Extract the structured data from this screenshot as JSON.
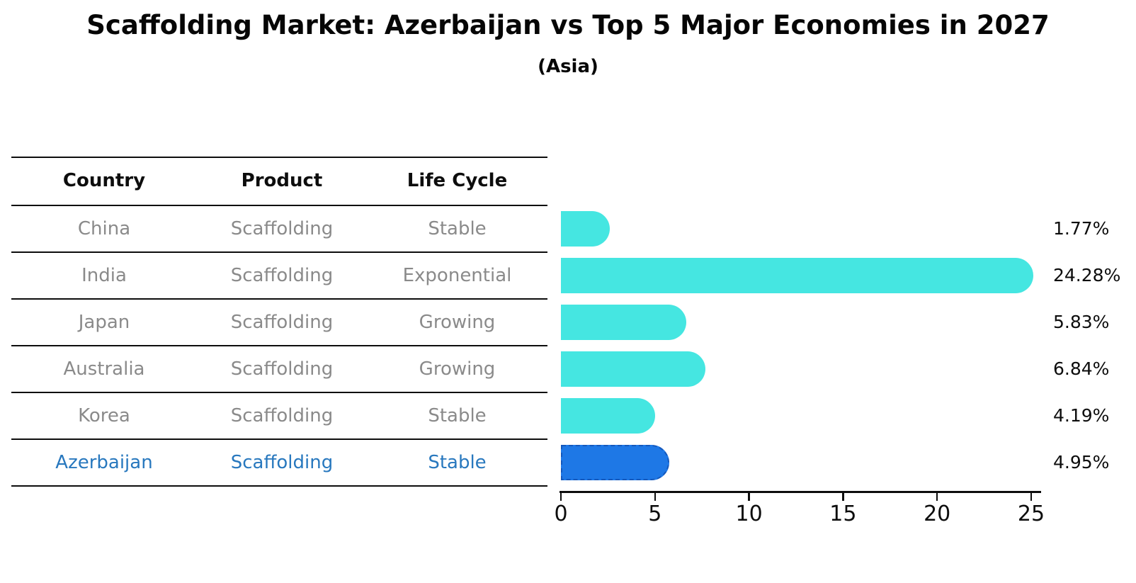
{
  "header": {
    "title": "Scaffolding Market: Azerbaijan vs Top 5 Major Economies in 2027",
    "subtitle": "(Asia)"
  },
  "table": {
    "columns": [
      "Country",
      "Product",
      "Life Cycle"
    ],
    "rows": [
      {
        "country": "China",
        "product": "Scaffolding",
        "life_cycle": "Stable",
        "highlight": false
      },
      {
        "country": "India",
        "product": "Scaffolding",
        "life_cycle": "Exponential",
        "highlight": false
      },
      {
        "country": "Japan",
        "product": "Scaffolding",
        "life_cycle": "Growing",
        "highlight": false
      },
      {
        "country": "Australia",
        "product": "Scaffolding",
        "life_cycle": "Growing",
        "highlight": false
      },
      {
        "country": "Korea",
        "product": "Scaffolding",
        "life_cycle": "Stable",
        "highlight": false
      },
      {
        "country": "Azerbaijan",
        "product": "Scaffolding",
        "life_cycle": "Stable",
        "highlight": true
      }
    ]
  },
  "chart_data": {
    "type": "bar",
    "orientation": "horizontal",
    "title": "Scaffolding Market: Azerbaijan vs Top 5 Major Economies in 2027",
    "subtitle": "(Asia)",
    "categories": [
      "China",
      "India",
      "Japan",
      "Australia",
      "Korea",
      "Azerbaijan"
    ],
    "values": [
      1.77,
      24.28,
      5.83,
      6.84,
      4.19,
      4.95
    ],
    "value_labels": [
      "1.77%",
      "24.28%",
      "5.83%",
      "6.84%",
      "4.19%",
      "4.95%"
    ],
    "highlight_category": "Azerbaijan",
    "xlabel": "",
    "ylabel": "",
    "xlim": [
      0,
      25
    ],
    "x_ticks": [
      0,
      5,
      10,
      15,
      20,
      25
    ],
    "grid": false,
    "legend": "none",
    "colors": {
      "bar": "#45e6e1",
      "highlight_bar": "#1e78e6",
      "highlight_bar_border": "#1458bc",
      "highlight_text": "#2878be",
      "table_text": "#8a8a8a",
      "axis_and_titles": "#0d0d0d"
    }
  }
}
